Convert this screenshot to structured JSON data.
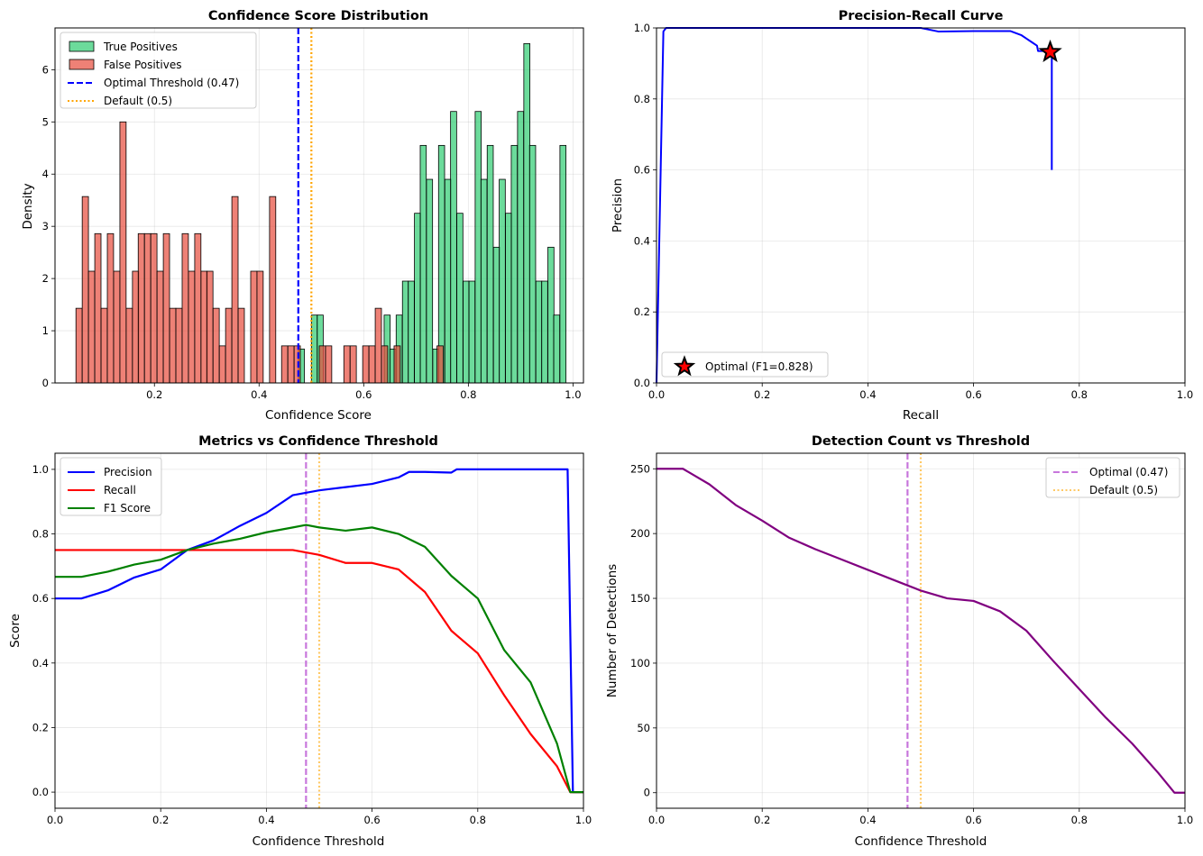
{
  "chart_data": [
    {
      "type": "histogram",
      "title": "Confidence Score Distribution",
      "xlabel": "Confidence Score",
      "ylabel": "Density",
      "xlim": [
        0.01,
        1.02
      ],
      "ylim": [
        0,
        6.8
      ],
      "xticks": [
        "0.2",
        "0.4",
        "0.6",
        "0.8",
        "1.0"
      ],
      "yticks": [
        "0",
        "1",
        "2",
        "3",
        "4",
        "5",
        "6"
      ],
      "grid": true,
      "legend_position": "top-left",
      "legend": [
        "True Positives",
        "False Positives",
        "Optimal Threshold (0.47)",
        "Default (0.5)"
      ],
      "colors": {
        "tp": "#2ecc71",
        "fp": "#e74c3c",
        "optimal": "#0000ff",
        "default": "#ffa500"
      },
      "thresholds": {
        "optimal": 0.475,
        "default": 0.5
      },
      "series": [
        {
          "name": "True Positives",
          "bin_width": 0.0116,
          "bins": [
            [
              0.475,
              0.65
            ],
            [
              0.5,
              1.3
            ],
            [
              0.511,
              1.3
            ],
            [
              0.639,
              1.3
            ],
            [
              0.65,
              0.65
            ],
            [
              0.662,
              1.3
            ],
            [
              0.674,
              1.95
            ],
            [
              0.685,
              1.95
            ],
            [
              0.697,
              3.25
            ],
            [
              0.708,
              4.55
            ],
            [
              0.72,
              3.9
            ],
            [
              0.732,
              0.65
            ],
            [
              0.743,
              4.55
            ],
            [
              0.755,
              3.9
            ],
            [
              0.766,
              5.2
            ],
            [
              0.778,
              3.25
            ],
            [
              0.79,
              1.95
            ],
            [
              0.801,
              1.95
            ],
            [
              0.813,
              5.2
            ],
            [
              0.824,
              3.9
            ],
            [
              0.836,
              4.55
            ],
            [
              0.848,
              2.6
            ],
            [
              0.859,
              3.9
            ],
            [
              0.871,
              3.25
            ],
            [
              0.882,
              4.55
            ],
            [
              0.894,
              5.2
            ],
            [
              0.906,
              6.5
            ],
            [
              0.917,
              4.55
            ],
            [
              0.929,
              1.95
            ],
            [
              0.94,
              1.95
            ],
            [
              0.952,
              2.6
            ],
            [
              0.963,
              1.3
            ],
            [
              0.975,
              4.55
            ]
          ]
        },
        {
          "name": "False Positives",
          "bin_width": 0.0119,
          "bins": [
            [
              0.05,
              1.43
            ],
            [
              0.062,
              3.57
            ],
            [
              0.074,
              2.14
            ],
            [
              0.086,
              2.86
            ],
            [
              0.098,
              1.43
            ],
            [
              0.11,
              2.86
            ],
            [
              0.122,
              2.14
            ],
            [
              0.134,
              5.0
            ],
            [
              0.146,
              1.43
            ],
            [
              0.158,
              2.14
            ],
            [
              0.169,
              2.86
            ],
            [
              0.181,
              2.86
            ],
            [
              0.193,
              2.86
            ],
            [
              0.205,
              2.14
            ],
            [
              0.217,
              2.86
            ],
            [
              0.229,
              1.43
            ],
            [
              0.241,
              1.43
            ],
            [
              0.253,
              2.86
            ],
            [
              0.265,
              2.14
            ],
            [
              0.277,
              2.86
            ],
            [
              0.289,
              2.14
            ],
            [
              0.3,
              2.14
            ],
            [
              0.312,
              1.43
            ],
            [
              0.324,
              0.71
            ],
            [
              0.336,
              1.43
            ],
            [
              0.348,
              3.57
            ],
            [
              0.36,
              1.43
            ],
            [
              0.384,
              2.14
            ],
            [
              0.396,
              2.14
            ],
            [
              0.42,
              3.57
            ],
            [
              0.443,
              0.71
            ],
            [
              0.455,
              0.71
            ],
            [
              0.467,
              0.71
            ],
            [
              0.515,
              0.71
            ],
            [
              0.527,
              0.71
            ],
            [
              0.562,
              0.71
            ],
            [
              0.574,
              0.71
            ],
            [
              0.598,
              0.71
            ],
            [
              0.61,
              0.71
            ],
            [
              0.622,
              1.43
            ],
            [
              0.634,
              0.71
            ],
            [
              0.658,
              0.71
            ],
            [
              0.74,
              0.71
            ]
          ]
        }
      ]
    },
    {
      "type": "line",
      "title": "Precision-Recall Curve",
      "xlabel": "Recall",
      "ylabel": "Precision",
      "xlim": [
        0,
        1
      ],
      "ylim": [
        0,
        1
      ],
      "xticks": [
        "0.0",
        "0.2",
        "0.4",
        "0.6",
        "0.8",
        "1.0"
      ],
      "yticks": [
        "0.0",
        "0.2",
        "0.4",
        "0.6",
        "0.8",
        "1.0"
      ],
      "grid": true,
      "legend_position": "bottom-left",
      "legend": [
        "Optimal (F1=0.828)"
      ],
      "colors": {
        "curve": "#0000ff",
        "marker": "#ff0000"
      },
      "optimal_point": [
        0.745,
        0.932
      ],
      "series": [
        {
          "name": "PR",
          "x": [
            0,
            0.013,
            0.018,
            0.1,
            0.3,
            0.5,
            0.533,
            0.6,
            0.67,
            0.69,
            0.7,
            0.71,
            0.72,
            0.722,
            0.73,
            0.745,
            0.748,
            0.748,
            0.748
          ],
          "y": [
            0.0,
            0.99,
            1.0,
            1.0,
            1.0,
            1.0,
            0.99,
            0.991,
            0.991,
            0.98,
            0.97,
            0.96,
            0.95,
            0.935,
            0.935,
            0.935,
            0.935,
            0.93,
            0.6
          ]
        }
      ]
    },
    {
      "type": "line",
      "title": "Metrics vs Confidence Threshold",
      "xlabel": "Confidence Threshold",
      "ylabel": "Score",
      "xlim": [
        0,
        1
      ],
      "ylim": [
        -0.05,
        1.05
      ],
      "xticks": [
        "0.0",
        "0.2",
        "0.4",
        "0.6",
        "0.8",
        "1.0"
      ],
      "yticks": [
        "0.0",
        "0.2",
        "0.4",
        "0.6",
        "0.8",
        "1.0"
      ],
      "grid": true,
      "legend_position": "top-left",
      "legend": [
        "Precision",
        "Recall",
        "F1 Score"
      ],
      "thresholds": {
        "optimal": 0.475,
        "default": 0.5
      },
      "colors": {
        "Precision": "#0000ff",
        "Recall": "#ff0000",
        "F1 Score": "#008000",
        "optimal": "#ba55d3",
        "default": "#ffa500"
      },
      "series": [
        {
          "name": "Precision",
          "x": [
            0,
            0.05,
            0.08,
            0.1,
            0.15,
            0.2,
            0.25,
            0.3,
            0.35,
            0.4,
            0.45,
            0.5,
            0.55,
            0.6,
            0.65,
            0.67,
            0.7,
            0.75,
            0.76,
            0.8,
            0.9,
            0.97,
            0.98,
            1.0
          ],
          "y": [
            0.6,
            0.6,
            0.615,
            0.625,
            0.665,
            0.69,
            0.75,
            0.78,
            0.825,
            0.865,
            0.92,
            0.935,
            0.945,
            0.955,
            0.975,
            0.992,
            0.992,
            0.99,
            1.0,
            1.0,
            1.0,
            1.0,
            0.0,
            0.0
          ]
        },
        {
          "name": "Recall",
          "x": [
            0,
            0.4,
            0.45,
            0.5,
            0.55,
            0.6,
            0.65,
            0.7,
            0.75,
            0.8,
            0.85,
            0.9,
            0.95,
            0.975,
            1.0
          ],
          "y": [
            0.75,
            0.75,
            0.75,
            0.735,
            0.71,
            0.71,
            0.69,
            0.62,
            0.5,
            0.43,
            0.3,
            0.18,
            0.08,
            0.0,
            0.0
          ]
        },
        {
          "name": "F1 Score",
          "x": [
            0,
            0.05,
            0.1,
            0.15,
            0.2,
            0.25,
            0.3,
            0.35,
            0.4,
            0.45,
            0.475,
            0.5,
            0.55,
            0.6,
            0.65,
            0.7,
            0.75,
            0.8,
            0.85,
            0.9,
            0.95,
            0.975,
            1.0
          ],
          "y": [
            0.667,
            0.667,
            0.683,
            0.705,
            0.72,
            0.75,
            0.77,
            0.785,
            0.805,
            0.82,
            0.828,
            0.82,
            0.81,
            0.82,
            0.8,
            0.76,
            0.67,
            0.6,
            0.44,
            0.34,
            0.15,
            0.0,
            0.0
          ]
        }
      ]
    },
    {
      "type": "line",
      "title": "Detection Count vs Threshold",
      "xlabel": "Confidence Threshold",
      "ylabel": "Number of Detections",
      "xlim": [
        0,
        1
      ],
      "ylim": [
        -12,
        262
      ],
      "xticks": [
        "0.0",
        "0.2",
        "0.4",
        "0.6",
        "0.8",
        "1.0"
      ],
      "yticks": [
        "0",
        "50",
        "100",
        "150",
        "200",
        "250"
      ],
      "grid": true,
      "legend_position": "top-right",
      "legend": [
        "Optimal (0.47)",
        "Default (0.5)"
      ],
      "thresholds": {
        "optimal": 0.475,
        "default": 0.5
      },
      "colors": {
        "curve": "#800080",
        "optimal": "#ba55d3",
        "default": "#ffa500"
      },
      "series": [
        {
          "name": "Detections",
          "x": [
            0,
            0.05,
            0.1,
            0.15,
            0.2,
            0.25,
            0.3,
            0.35,
            0.4,
            0.45,
            0.475,
            0.5,
            0.55,
            0.6,
            0.65,
            0.7,
            0.75,
            0.8,
            0.85,
            0.9,
            0.95,
            0.98,
            1.0
          ],
          "y": [
            250,
            250,
            238,
            222,
            210,
            197,
            188,
            180,
            172,
            164,
            160,
            156,
            150,
            148,
            140,
            125,
            102,
            80,
            58,
            38,
            15,
            0,
            0
          ]
        }
      ]
    }
  ]
}
